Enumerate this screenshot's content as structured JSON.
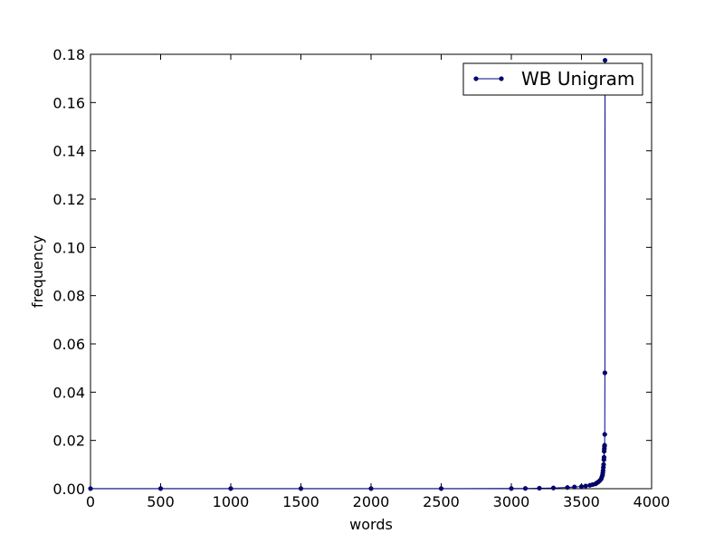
{
  "chart_data": {
    "type": "line",
    "xlabel": "words",
    "ylabel": "frequency",
    "xlim": [
      0,
      4000
    ],
    "ylim": [
      0,
      0.18
    ],
    "xticks": [
      0,
      500,
      1000,
      1500,
      2000,
      2500,
      3000,
      3500,
      4000
    ],
    "xtick_labels": [
      "0",
      "500",
      "1000",
      "1500",
      "2000",
      "2500",
      "3000",
      "3500",
      "4000"
    ],
    "yticks": [
      0,
      0.02,
      0.04,
      0.06,
      0.08,
      0.1,
      0.12,
      0.14,
      0.16,
      0.18
    ],
    "ytick_labels": [
      "0.00",
      "0.02",
      "0.04",
      "0.06",
      "0.08",
      "0.10",
      "0.12",
      "0.14",
      "0.16",
      "0.18"
    ],
    "grid": false,
    "legend_position": "top-right",
    "colors": {
      "series": "#00008b",
      "axes": "#000000"
    },
    "series": [
      {
        "name": "WB Unigram",
        "x": [
          0,
          500,
          1000,
          1500,
          2000,
          2500,
          3000,
          3100,
          3200,
          3300,
          3400,
          3450,
          3500,
          3530,
          3560,
          3580,
          3600,
          3610,
          3620,
          3630,
          3640,
          3645,
          3650,
          3652,
          3654,
          3656,
          3658,
          3660,
          3661,
          3662,
          3663,
          3664,
          3665,
          3666,
          3667,
          3668
        ],
        "y": [
          5e-05,
          5e-05,
          5e-05,
          5e-05,
          5e-05,
          5e-05,
          8e-05,
          0.0001,
          0.0002,
          0.0003,
          0.0005,
          0.0007,
          0.0009,
          0.0011,
          0.0014,
          0.0017,
          0.002,
          0.0024,
          0.0028,
          0.0033,
          0.004,
          0.0048,
          0.0056,
          0.0065,
          0.0075,
          0.0088,
          0.01,
          0.012,
          0.013,
          0.0155,
          0.0165,
          0.0175,
          0.018,
          0.0225,
          0.048,
          0.1775
        ]
      }
    ]
  }
}
